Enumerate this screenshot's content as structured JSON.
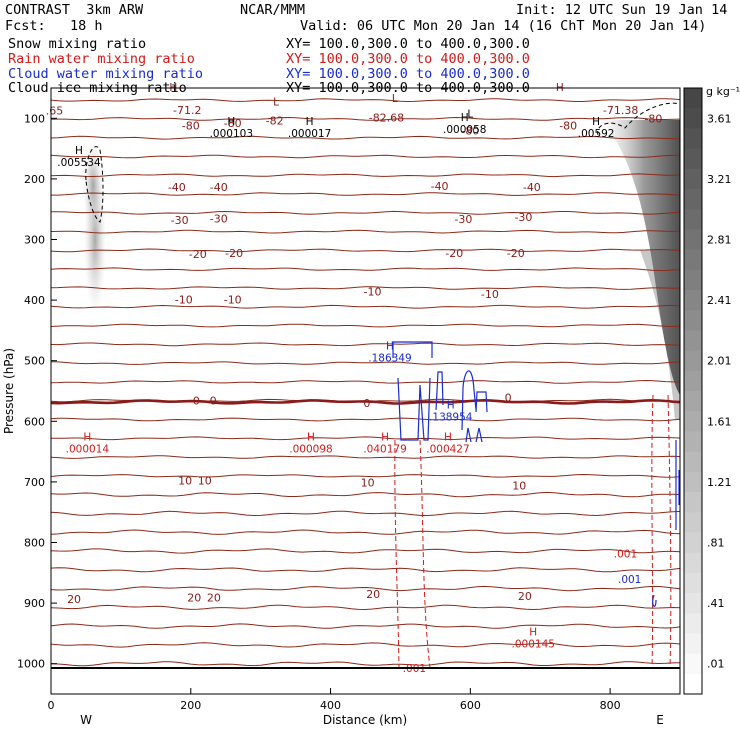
{
  "header": {
    "model": "CONTRAST  3km ARW",
    "center": "NCAR/MMM",
    "init": "Init: 12 UTC Sun 19 Jan 14",
    "fcst": "Fcst:   18 h",
    "valid": "Valid: 06 UTC Mon 20 Jan 14 (16 ChT Mon 20 Jan 14)",
    "fields": [
      {
        "name": "Snow mixing ratio",
        "xy": "XY= 100.0,300.0 to 400.0,300.0",
        "color": "#000000"
      },
      {
        "name": "Rain water mixing ratio",
        "xy": "XY= 100.0,300.0 to 400.0,300.0",
        "color": "#d41a1a"
      },
      {
        "name": "Cloud water mixing ratio",
        "xy": "XY= 100.0,300.0 to 400.0,300.0",
        "color": "#1a2bd4"
      },
      {
        "name": "Cloud ice mixing ratio",
        "xy": "XY= 100.0,300.0 to 400.0,300.0",
        "color": "#000000"
      }
    ]
  },
  "chart_data": {
    "type": "heatmap",
    "xlabel": "Distance (km)",
    "ylabel": "Pressure (hPa)",
    "xlim": [
      0,
      900
    ],
    "ylim": [
      1050,
      50
    ],
    "xticks": [
      "0",
      "200",
      "400",
      "600",
      "800"
    ],
    "xtick_values": [
      0,
      200,
      400,
      600,
      800
    ],
    "yticks": [
      "100",
      "200",
      "300",
      "400",
      "500",
      "600",
      "700",
      "800",
      "900",
      "1000"
    ],
    "ytick_values": [
      100,
      200,
      300,
      400,
      500,
      600,
      700,
      800,
      900,
      1000
    ],
    "west_label": "W",
    "east_label": "E",
    "colorbar": {
      "unit": "g kg⁻¹",
      "labels": [
        "3.61",
        "3.21",
        "2.81",
        "2.41",
        "2.01",
        "1.61",
        "1.21",
        ".81",
        ".41",
        ".01"
      ],
      "values": [
        3.61,
        3.21,
        2.81,
        2.41,
        2.01,
        1.61,
        1.21,
        0.81,
        0.41,
        0.01
      ]
    },
    "temperature_contours": [
      {
        "label": "-71.2",
        "p": 85
      },
      {
        "label": "-80",
        "p": 112
      },
      {
        "label": "-40",
        "p": 210
      },
      {
        "label": "-30",
        "p": 265
      },
      {
        "label": "-20",
        "p": 320
      },
      {
        "label": "-10",
        "p": 395
      },
      {
        "label": "0",
        "p": 568
      },
      {
        "label": "10",
        "p": 695
      },
      {
        "label": "20",
        "p": 888
      }
    ],
    "contour_labels": [
      {
        "text": "-71.2",
        "x": 195,
        "p": 86
      },
      {
        "text": "-80",
        "x": 200,
        "p": 112
      },
      {
        "text": "-80",
        "x": 260,
        "p": 108
      },
      {
        "text": "-82",
        "x": 320,
        "p": 104
      },
      {
        "text": "-82.68",
        "x": 480,
        "p": 99
      },
      {
        "text": "-80",
        "x": 600,
        "p": 120
      },
      {
        "text": "-71.38",
        "x": 815,
        "p": 86
      },
      {
        "text": "-80",
        "x": 862,
        "p": 100
      },
      {
        "text": "-80",
        "x": 740,
        "p": 112
      },
      {
        "text": "-40",
        "x": 180,
        "p": 213
      },
      {
        "text": "-40",
        "x": 240,
        "p": 213
      },
      {
        "text": "-40",
        "x": 556,
        "p": 212
      },
      {
        "text": "-40",
        "x": 688,
        "p": 213
      },
      {
        "text": "-30",
        "x": 184,
        "p": 268
      },
      {
        "text": "-30",
        "x": 240,
        "p": 265
      },
      {
        "text": "-30",
        "x": 590,
        "p": 266
      },
      {
        "text": "-30",
        "x": 676,
        "p": 263
      },
      {
        "text": "-20",
        "x": 210,
        "p": 324
      },
      {
        "text": "-20",
        "x": 262,
        "p": 322
      },
      {
        "text": "-20",
        "x": 577,
        "p": 322
      },
      {
        "text": "-20",
        "x": 665,
        "p": 322
      },
      {
        "text": "-10",
        "x": 190,
        "p": 399
      },
      {
        "text": "-10",
        "x": 260,
        "p": 399
      },
      {
        "text": "-10",
        "x": 460,
        "p": 386
      },
      {
        "text": "-10",
        "x": 628,
        "p": 390
      },
      {
        "text": "0",
        "x": 208,
        "p": 566
      },
      {
        "text": "0",
        "x": 232,
        "p": 566
      },
      {
        "text": "0",
        "x": 452,
        "p": 570
      },
      {
        "text": "0",
        "x": 654,
        "p": 561
      },
      {
        "text": "10",
        "x": 192,
        "p": 698
      },
      {
        "text": "10",
        "x": 220,
        "p": 698
      },
      {
        "text": "10",
        "x": 453,
        "p": 701
      },
      {
        "text": "10",
        "x": 670,
        "p": 706
      },
      {
        "text": "20",
        "x": 33,
        "p": 893
      },
      {
        "text": "20",
        "x": 205,
        "p": 891
      },
      {
        "text": "20",
        "x": 233,
        "p": 891
      },
      {
        "text": "20",
        "x": 461,
        "p": 885
      },
      {
        "text": "20",
        "x": 678,
        "p": 888
      },
      {
        "text": ".65",
        "x": 5,
        "p": 87
      }
    ],
    "extrema": [
      {
        "mark": "H",
        "value": ".005534",
        "x": 40,
        "p": 172,
        "color": "#000000"
      },
      {
        "mark": "H",
        "value": ".000103",
        "x": 258,
        "p": 124,
        "color": "#000000"
      },
      {
        "mark": "H",
        "value": ".000017",
        "x": 370,
        "p": 124,
        "color": "#000000"
      },
      {
        "mark": "H",
        "value": ".000058",
        "x": 592,
        "p": 118,
        "color": "#000000"
      },
      {
        "mark": "H",
        "value": ".00592",
        "x": 780,
        "p": 124,
        "color": "#000000"
      },
      {
        "mark": "H",
        "value": ".186349",
        "x": 485,
        "p": 495,
        "color": "#1a2bd4"
      },
      {
        "mark": "H",
        "value": ".138954",
        "x": 572,
        "p": 592,
        "color": "#1a2bd4"
      },
      {
        "mark": "H",
        "value": ".000014",
        "x": 52,
        "p": 645,
        "color": "#d41a1a"
      },
      {
        "mark": "H",
        "value": ".000098",
        "x": 372,
        "p": 645,
        "color": "#d41a1a"
      },
      {
        "mark": "H",
        "value": ".040179",
        "x": 478,
        "p": 645,
        "color": "#d41a1a"
      },
      {
        "mark": "H",
        "value": ".000427",
        "x": 568,
        "p": 645,
        "color": "#d41a1a"
      },
      {
        "mark": "H",
        "value": ".000145",
        "x": 690,
        "p": 967,
        "color": "#d41a1a"
      },
      {
        "mark": "",
        "value": ".001",
        "x": 822,
        "p": 818,
        "color": "#d41a1a"
      },
      {
        "mark": "",
        "value": ".001",
        "x": 828,
        "p": 860,
        "color": "#1a2bd4"
      },
      {
        "mark": "",
        "value": ".001",
        "x": 520,
        "p": 1007,
        "color": "#d41a1a"
      },
      {
        "mark": "L",
        "value": "",
        "x": 322,
        "p": 92,
        "color": "#8b1a1a"
      },
      {
        "mark": "L",
        "value": "",
        "x": 492,
        "p": 86,
        "color": "#8b1a1a"
      },
      {
        "mark": "L",
        "value": "",
        "x": 600,
        "p": 112,
        "color": "#000000"
      },
      {
        "mark": "H",
        "value": "",
        "x": 175,
        "p": 68,
        "color": "#8b1a1a"
      },
      {
        "mark": "H",
        "value": "",
        "x": 728,
        "p": 68,
        "color": "#8b1a1a"
      }
    ]
  }
}
